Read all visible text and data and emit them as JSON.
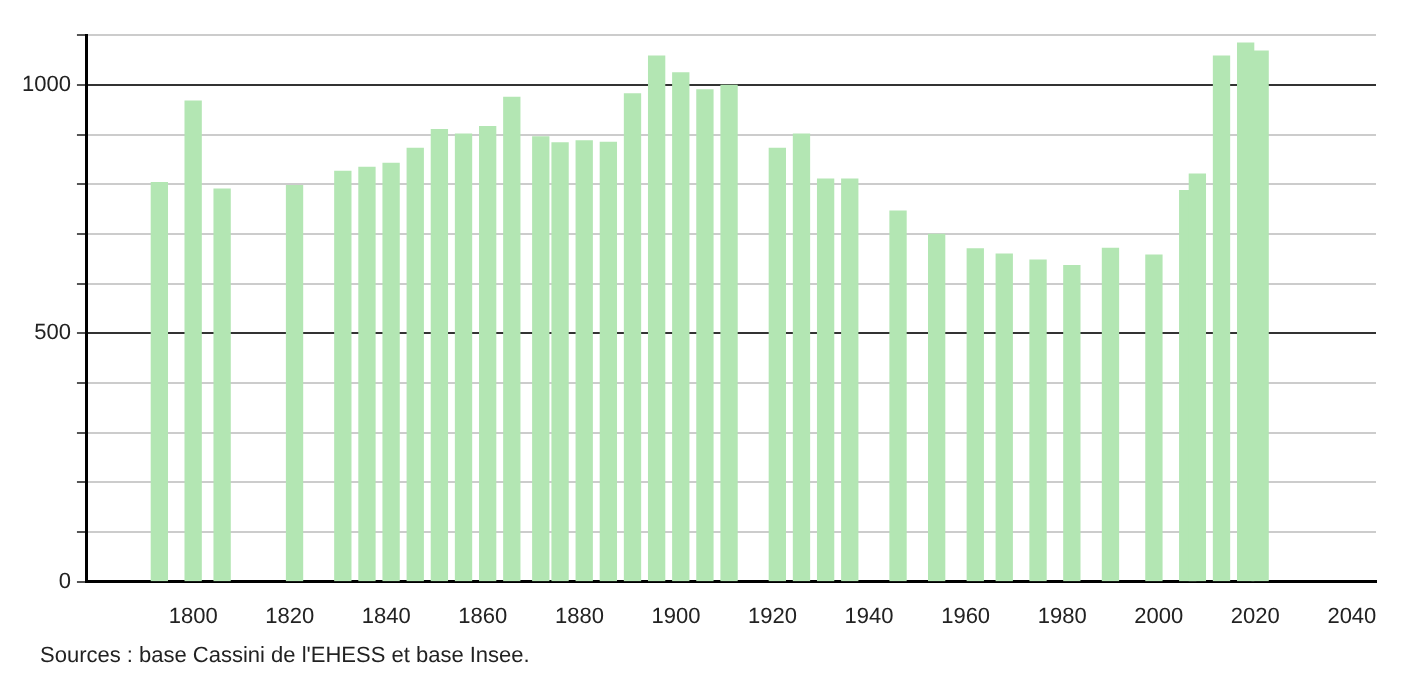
{
  "chart_data": {
    "type": "bar",
    "x": [
      1793,
      1800,
      1806,
      1821,
      1831,
      1836,
      1841,
      1846,
      1851,
      1856,
      1861,
      1866,
      1872,
      1876,
      1881,
      1886,
      1891,
      1896,
      1901,
      1906,
      1911,
      1921,
      1926,
      1931,
      1936,
      1946,
      1954,
      1962,
      1968,
      1975,
      1982,
      1990,
      1999,
      2006,
      2008,
      2013,
      2018,
      2021
    ],
    "values": [
      803,
      967,
      790,
      797,
      826,
      834,
      842,
      872,
      910,
      901,
      916,
      975,
      895,
      883,
      887,
      884,
      982,
      1058,
      1024,
      990,
      999,
      872,
      901,
      810,
      810,
      746,
      699,
      670,
      659,
      647,
      636,
      671,
      657,
      787,
      820,
      1058,
      1084,
      1068
    ],
    "color": "#b3e6b3",
    "xlim": [
      1778,
      2045
    ],
    "xticks": [
      1800,
      1820,
      1840,
      1860,
      1880,
      1900,
      1920,
      1940,
      1960,
      1980,
      2000,
      2020,
      2040
    ],
    "ylim": [
      0,
      1100
    ],
    "yticks": [
      0,
      {
        "value": 100,
        "label": null
      },
      {
        "value": 200,
        "label": null
      },
      {
        "value": 300,
        "label": null
      },
      {
        "value": 400,
        "label": null
      },
      500,
      {
        "value": 600,
        "label": null
      },
      {
        "value": 700,
        "label": null
      },
      {
        "value": 800,
        "label": null
      },
      {
        "value": 900,
        "label": null
      },
      1000,
      {
        "value": 1100,
        "label": null
      }
    ],
    "grid": "y",
    "annotations": [
      "Sources : base Cassini de l'EHESS et base Insee."
    ]
  }
}
